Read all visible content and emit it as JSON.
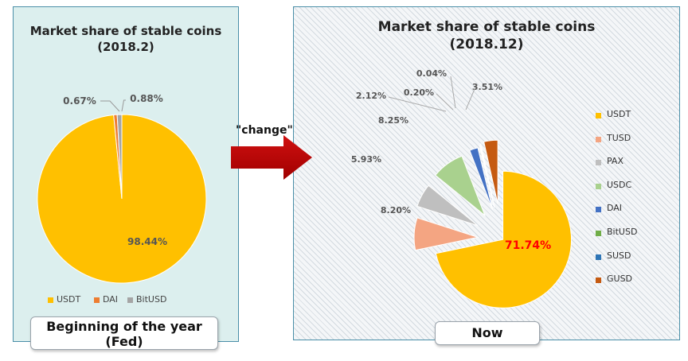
{
  "left": {
    "title_line1": "Market share of stable coins",
    "title_line2": "(2018.2)",
    "caption_line1": "Beginning of the year",
    "caption_line2": "(Fed)"
  },
  "right": {
    "title_line1": "Market share of stable coins",
    "title_line2": "(2018.12)",
    "caption": "Now"
  },
  "change_label": "\"change\"",
  "chart_data": [
    {
      "type": "pie",
      "title": "Market share of stable coins (2018.2)",
      "labels": [
        "USDT",
        "DAI",
        "BitUSD"
      ],
      "values": [
        98.44,
        0.67,
        0.88
      ],
      "value_labels": [
        "98.44%",
        "0.67%",
        "0.88%"
      ],
      "colors": [
        "#ffc000",
        "#ed7d31",
        "#a5a5a5"
      ],
      "legend_position": "bottom"
    },
    {
      "type": "pie",
      "title": "Market share of stable coins (2018.12)",
      "labels": [
        "USDT",
        "TUSD",
        "PAX",
        "USDC",
        "DAI",
        "BitUSD",
        "SUSD",
        "GUSD"
      ],
      "values": [
        71.74,
        8.2,
        5.93,
        8.25,
        2.12,
        0.2,
        0.04,
        3.51
      ],
      "value_labels": [
        "71.74%",
        "8.20%",
        "5.93%",
        "8.25%",
        "2.12%",
        "0.20%",
        "0.04%",
        "3.51%"
      ],
      "colors": [
        "#ffc000",
        "#f4a582",
        "#bfbfbf",
        "#a9d18e",
        "#4472c4",
        "#70ad47",
        "#2e75b6",
        "#c55a11"
      ],
      "highlight_color": "#ff0000",
      "exploded": true,
      "legend_position": "right"
    }
  ]
}
